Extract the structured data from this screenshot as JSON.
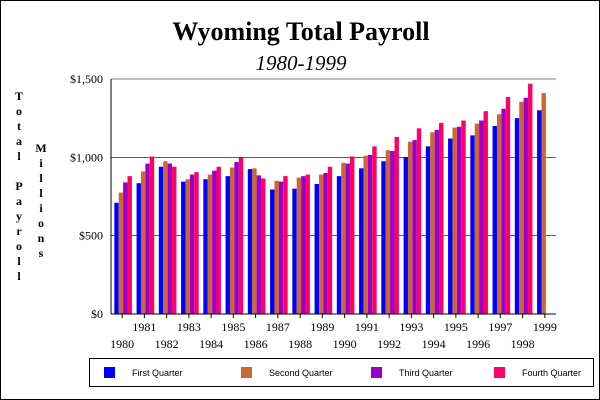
{
  "chart_data": {
    "type": "bar",
    "title": "Wyoming Total Payroll",
    "subtitle": "1980-1999",
    "ylabel": "Total Payroll",
    "ylabel_unit": "Millions",
    "ylim": [
      0,
      1500
    ],
    "yticks": [
      0,
      500,
      1000,
      1500
    ],
    "ytick_labels": [
      "$0",
      "$500",
      "$1,000",
      "$1,500"
    ],
    "grid": true,
    "legend_position": "bottom",
    "categories": [
      "1980",
      "1981",
      "1982",
      "1983",
      "1984",
      "1985",
      "1986",
      "1987",
      "1988",
      "1989",
      "1990",
      "1991",
      "1992",
      "1993",
      "1994",
      "1995",
      "1996",
      "1997",
      "1998",
      "1999"
    ],
    "series": [
      {
        "name": "First Quarter",
        "color": "#0000ff",
        "values": [
          710,
          835,
          940,
          845,
          860,
          880,
          925,
          795,
          800,
          830,
          880,
          930,
          975,
          1000,
          1070,
          1120,
          1140,
          1200,
          1250,
          1300
        ]
      },
      {
        "name": "Second Quarter",
        "color": "#cc6633",
        "values": [
          775,
          910,
          975,
          860,
          890,
          935,
          930,
          850,
          870,
          890,
          965,
          1010,
          1045,
          1100,
          1160,
          1190,
          1215,
          1275,
          1355,
          1410
        ]
      },
      {
        "name": "Third Quarter",
        "color": "#9900cc",
        "values": [
          840,
          960,
          960,
          890,
          915,
          970,
          885,
          845,
          880,
          900,
          960,
          1015,
          1040,
          1110,
          1175,
          1195,
          1235,
          1310,
          1380,
          null
        ]
      },
      {
        "name": "Fourth Quarter",
        "color": "#ff0066",
        "values": [
          880,
          1005,
          940,
          905,
          940,
          1000,
          865,
          880,
          890,
          940,
          1005,
          1070,
          1130,
          1185,
          1220,
          1235,
          1295,
          1385,
          1470,
          null
        ]
      }
    ]
  }
}
